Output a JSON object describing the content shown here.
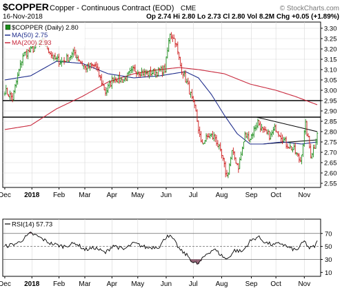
{
  "header": {
    "symbol": "$COPPER",
    "name": "Copper - Continuous Contract (EOD)",
    "exchange": "CME",
    "watermark": "© StockCharts.com",
    "date": "16-Nov-2018",
    "ohlc_text": "Op 2.74  Hi 2.80  Lo 2.73  Cl 2.80  Vol 8.2M  Chg +0.05 (+1.89%)"
  },
  "colors": {
    "price_up": "#1a8c1a",
    "price_down": "#cc1a1a",
    "ma50": "#1f2d8c",
    "ma200": "#c8283c",
    "rsi": "#000000",
    "grid": "#d7d7d7",
    "rsi_extreme_fill": "#8c5a6e"
  },
  "chart_data": [
    {
      "type": "candlestick",
      "legend": [
        {
          "label": "$COPPER (Daily) 2.80",
          "color": "#000000"
        },
        {
          "label": "MA(50) 2.75",
          "color": "#1f2d8c"
        },
        {
          "label": "MA(200) 2.93",
          "color": "#c8283c"
        }
      ],
      "x_tick_labels": [
        "Dec",
        "2018",
        "Feb",
        "Mar",
        "Apr",
        "May",
        "Jun",
        "Jul",
        "Aug",
        "Sep",
        "Oct",
        "Nov"
      ],
      "x_tick_index": [
        0,
        21,
        42,
        62,
        83,
        103,
        125,
        146,
        168,
        191,
        210,
        232
      ],
      "y_tick_labels": [
        "3.30",
        "3.25",
        "3.20",
        "3.15",
        "3.10",
        "3.05",
        "3.00",
        "2.95",
        "2.90",
        "2.85",
        "2.80",
        "2.75",
        "2.70",
        "2.65",
        "2.60",
        "2.55"
      ],
      "ylim": [
        2.53,
        3.33
      ],
      "n_days": 243,
      "close_anchors": [
        [
          0,
          3.0
        ],
        [
          6,
          2.96
        ],
        [
          14,
          3.17
        ],
        [
          22,
          3.2
        ],
        [
          30,
          3.24
        ],
        [
          38,
          3.15
        ],
        [
          45,
          3.14
        ],
        [
          54,
          3.18
        ],
        [
          62,
          3.11
        ],
        [
          70,
          3.12
        ],
        [
          78,
          2.99
        ],
        [
          84,
          3.06
        ],
        [
          92,
          3.05
        ],
        [
          100,
          3.1
        ],
        [
          110,
          3.08
        ],
        [
          118,
          3.09
        ],
        [
          124,
          3.1
        ],
        [
          128,
          3.28
        ],
        [
          132,
          3.24
        ],
        [
          136,
          3.12
        ],
        [
          142,
          3.02
        ],
        [
          148,
          2.89
        ],
        [
          152,
          2.74
        ],
        [
          158,
          2.78
        ],
        [
          163,
          2.77
        ],
        [
          168,
          2.68
        ],
        [
          172,
          2.58
        ],
        [
          176,
          2.7
        ],
        [
          181,
          2.63
        ],
        [
          186,
          2.78
        ],
        [
          190,
          2.77
        ],
        [
          196,
          2.85
        ],
        [
          200,
          2.8
        ],
        [
          206,
          2.78
        ],
        [
          210,
          2.82
        ],
        [
          218,
          2.74
        ],
        [
          224,
          2.71
        ],
        [
          229,
          2.66
        ],
        [
          233,
          2.83
        ],
        [
          237,
          2.69
        ],
        [
          240,
          2.73
        ],
        [
          242,
          2.8
        ]
      ],
      "ma50_anchors": [
        [
          0,
          3.05
        ],
        [
          20,
          3.07
        ],
        [
          40,
          3.14
        ],
        [
          60,
          3.13
        ],
        [
          80,
          3.08
        ],
        [
          100,
          3.06
        ],
        [
          120,
          3.07
        ],
        [
          140,
          3.09
        ],
        [
          150,
          3.06
        ],
        [
          160,
          2.98
        ],
        [
          170,
          2.88
        ],
        [
          180,
          2.79
        ],
        [
          190,
          2.74
        ],
        [
          200,
          2.74
        ],
        [
          215,
          2.75
        ],
        [
          230,
          2.74
        ],
        [
          242,
          2.75
        ]
      ],
      "ma200_anchors": [
        [
          0,
          2.81
        ],
        [
          20,
          2.83
        ],
        [
          40,
          2.91
        ],
        [
          60,
          2.97
        ],
        [
          80,
          3.04
        ],
        [
          100,
          3.08
        ],
        [
          120,
          3.1
        ],
        [
          135,
          3.11
        ],
        [
          150,
          3.1
        ],
        [
          170,
          3.08
        ],
        [
          190,
          3.03
        ],
        [
          210,
          3.0
        ],
        [
          225,
          2.97
        ],
        [
          242,
          2.93
        ]
      ],
      "horizontal_lines": [
        2.95,
        2.87
      ],
      "trendlines": [
        {
          "from": [
            195,
            2.87
          ],
          "to": [
            242,
            2.8
          ]
        },
        {
          "from": [
            200,
            2.74
          ],
          "to": [
            242,
            2.76
          ]
        }
      ]
    },
    {
      "type": "line",
      "legend": [
        {
          "label": "RSI(14) 57.73",
          "color": "#000000"
        }
      ],
      "y_tick_labels": [
        "70",
        "50",
        "30",
        "10"
      ],
      "ylim": [
        4,
        92
      ],
      "levels": [
        70,
        50,
        30
      ],
      "rsi_anchors": [
        [
          0,
          50
        ],
        [
          10,
          55
        ],
        [
          20,
          70
        ],
        [
          25,
          66
        ],
        [
          35,
          55
        ],
        [
          45,
          50
        ],
        [
          55,
          55
        ],
        [
          62,
          45
        ],
        [
          70,
          48
        ],
        [
          78,
          40
        ],
        [
          84,
          52
        ],
        [
          92,
          45
        ],
        [
          100,
          55
        ],
        [
          110,
          48
        ],
        [
          120,
          50
        ],
        [
          126,
          68
        ],
        [
          130,
          62
        ],
        [
          136,
          44
        ],
        [
          142,
          35
        ],
        [
          146,
          25
        ],
        [
          150,
          23
        ],
        [
          156,
          38
        ],
        [
          162,
          46
        ],
        [
          168,
          36
        ],
        [
          172,
          30
        ],
        [
          178,
          44
        ],
        [
          184,
          42
        ],
        [
          190,
          58
        ],
        [
          196,
          65
        ],
        [
          202,
          56
        ],
        [
          208,
          52
        ],
        [
          214,
          55
        ],
        [
          220,
          48
        ],
        [
          226,
          44
        ],
        [
          232,
          58
        ],
        [
          236,
          47
        ],
        [
          240,
          50
        ],
        [
          242,
          57
        ]
      ],
      "x_tick_labels": [
        "Dec",
        "2018",
        "Feb",
        "Mar",
        "Apr",
        "May",
        "Jun",
        "Jul",
        "Aug",
        "Sep",
        "Oct",
        "Nov"
      ]
    }
  ]
}
